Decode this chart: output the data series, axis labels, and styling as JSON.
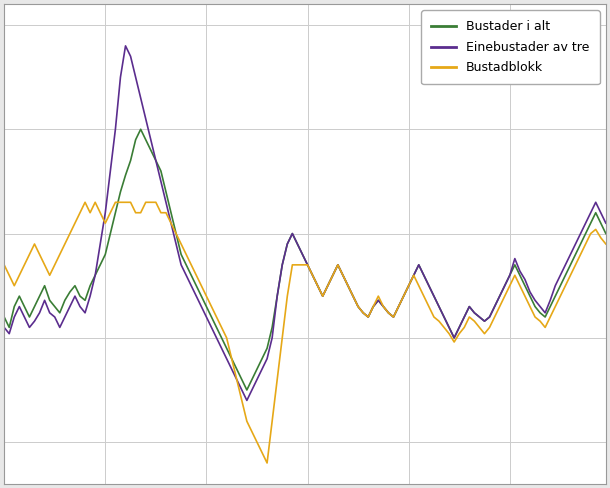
{
  "legend_labels": [
    "Bustader i alt",
    "Einebustader av tre",
    "Bustadblokk"
  ],
  "colors": [
    "#3a7d35",
    "#5b2d8e",
    "#e6a817"
  ],
  "background_color": "#e8e8e8",
  "plot_background": "#ffffff",
  "grid_color": "#cccccc",
  "linewidth": 1.2,
  "bustader_i_alt": [
    1.0,
    0.5,
    1.5,
    2.0,
    1.5,
    1.0,
    1.5,
    2.0,
    2.5,
    1.8,
    1.5,
    1.2,
    1.8,
    2.2,
    2.5,
    2.0,
    1.8,
    2.5,
    3.0,
    3.5,
    4.0,
    5.0,
    6.0,
    7.0,
    7.8,
    8.5,
    9.5,
    10.0,
    9.5,
    9.0,
    8.5,
    8.0,
    7.0,
    6.0,
    5.0,
    4.0,
    3.5,
    3.0,
    2.5,
    2.0,
    1.5,
    1.0,
    0.5,
    0.0,
    -0.5,
    -1.0,
    -1.5,
    -2.0,
    -2.5,
    -2.0,
    -1.5,
    -1.0,
    -0.5,
    0.5,
    2.0,
    3.5,
    4.5,
    5.0,
    4.5,
    4.0,
    3.5,
    3.0,
    2.5,
    2.0,
    2.5,
    3.0,
    3.5,
    3.0,
    2.5,
    2.0,
    1.5,
    1.2,
    1.0,
    1.5,
    1.8,
    1.5,
    1.2,
    1.0,
    1.5,
    2.0,
    2.5,
    3.0,
    3.5,
    3.0,
    2.5,
    2.0,
    1.5,
    1.0,
    0.5,
    0.0,
    0.5,
    1.0,
    1.5,
    1.2,
    1.0,
    0.8,
    1.0,
    1.5,
    2.0,
    2.5,
    3.0,
    3.5,
    3.0,
    2.5,
    2.0,
    1.5,
    1.2,
    1.0,
    1.5,
    2.0,
    2.5,
    3.0,
    3.5,
    4.0,
    4.5,
    5.0,
    5.5,
    6.0,
    5.5,
    5.0
  ],
  "einebustader": [
    0.5,
    0.2,
    1.0,
    1.5,
    1.0,
    0.5,
    0.8,
    1.2,
    1.8,
    1.2,
    1.0,
    0.5,
    1.0,
    1.5,
    2.0,
    1.5,
    1.2,
    2.0,
    3.0,
    4.5,
    6.0,
    8.0,
    10.0,
    12.5,
    14.0,
    13.5,
    12.5,
    11.5,
    10.5,
    9.5,
    8.5,
    7.5,
    6.5,
    5.5,
    4.5,
    3.5,
    3.0,
    2.5,
    2.0,
    1.5,
    1.0,
    0.5,
    0.0,
    -0.5,
    -1.0,
    -1.5,
    -2.0,
    -2.5,
    -3.0,
    -2.5,
    -2.0,
    -1.5,
    -1.0,
    0.0,
    2.0,
    3.5,
    4.5,
    5.0,
    4.5,
    4.0,
    3.5,
    3.0,
    2.5,
    2.0,
    2.5,
    3.0,
    3.5,
    3.0,
    2.5,
    2.0,
    1.5,
    1.2,
    1.0,
    1.5,
    1.8,
    1.5,
    1.2,
    1.0,
    1.5,
    2.0,
    2.5,
    3.0,
    3.5,
    3.0,
    2.5,
    2.0,
    1.5,
    1.0,
    0.5,
    0.0,
    0.5,
    1.0,
    1.5,
    1.2,
    1.0,
    0.8,
    1.0,
    1.5,
    2.0,
    2.5,
    3.0,
    3.8,
    3.2,
    2.8,
    2.2,
    1.8,
    1.5,
    1.2,
    1.8,
    2.5,
    3.0,
    3.5,
    4.0,
    4.5,
    5.0,
    5.5,
    6.0,
    6.5,
    6.0,
    5.5
  ],
  "bustadblokk": [
    3.5,
    3.0,
    2.5,
    3.0,
    3.5,
    4.0,
    4.5,
    4.0,
    3.5,
    3.0,
    3.5,
    4.0,
    4.5,
    5.0,
    5.5,
    6.0,
    6.5,
    6.0,
    6.5,
    6.0,
    5.5,
    6.0,
    6.5,
    6.5,
    6.5,
    6.5,
    6.0,
    6.0,
    6.5,
    6.5,
    6.5,
    6.0,
    6.0,
    5.5,
    5.0,
    4.5,
    4.0,
    3.5,
    3.0,
    2.5,
    2.0,
    1.5,
    1.0,
    0.5,
    0.0,
    -1.0,
    -2.0,
    -3.0,
    -4.0,
    -4.5,
    -5.0,
    -5.5,
    -6.0,
    -4.0,
    -2.0,
    0.0,
    2.0,
    3.5,
    3.5,
    3.5,
    3.5,
    3.0,
    2.5,
    2.0,
    2.5,
    3.0,
    3.5,
    3.0,
    2.5,
    2.0,
    1.5,
    1.2,
    1.0,
    1.5,
    2.0,
    1.5,
    1.2,
    1.0,
    1.5,
    2.0,
    2.5,
    3.0,
    2.5,
    2.0,
    1.5,
    1.0,
    0.8,
    0.5,
    0.2,
    -0.2,
    0.2,
    0.5,
    1.0,
    0.8,
    0.5,
    0.2,
    0.5,
    1.0,
    1.5,
    2.0,
    2.5,
    3.0,
    2.5,
    2.0,
    1.5,
    1.0,
    0.8,
    0.5,
    1.0,
    1.5,
    2.0,
    2.5,
    3.0,
    3.5,
    4.0,
    4.5,
    5.0,
    5.2,
    4.8,
    4.5
  ]
}
